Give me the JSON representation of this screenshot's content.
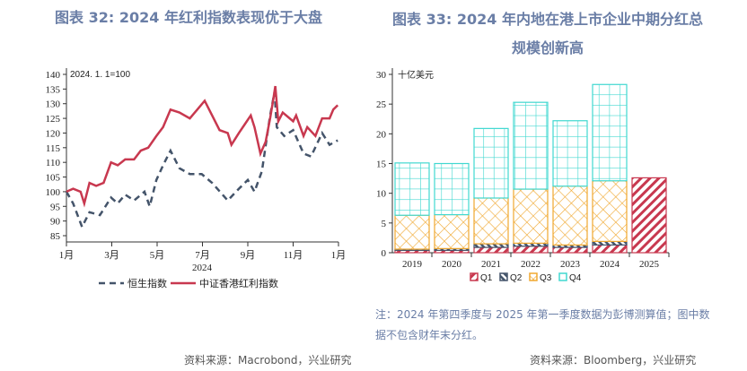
{
  "left": {
    "title": "图表 32: 2024 年红利指数表现优于大盘",
    "source": "资料来源：Macrobond，兴业研究"
  },
  "right": {
    "title_line1": "图表 33: 2024 年内地在港上市企业中期分红总",
    "title_line2": "规模创新高",
    "note": "注：2024 年第四季度与 2025 年第一季度数据为彭博测算值；图中数据不包含财年末分红。",
    "source": "资料来源：Bloomberg，兴业研究"
  },
  "chart_data": [
    {
      "type": "line",
      "annotation": "2024. 1. 1=100",
      "xlabel": "2024",
      "ylim": [
        85,
        140
      ],
      "yticks": [
        85,
        90,
        95,
        100,
        105,
        110,
        115,
        120,
        125,
        130,
        135,
        140
      ],
      "xticks": [
        "1月",
        "3月",
        "5月",
        "7月",
        "9月",
        "11月",
        "1月"
      ],
      "legend_position": "bottom",
      "series": [
        {
          "name": "恒生指数",
          "color": "#44546a",
          "style": "dashed",
          "points": [
            [
              "2024-01-01",
              100
            ],
            [
              "2024-01-10",
              96
            ],
            [
              "2024-01-22",
              88
            ],
            [
              "2024-02-01",
              93
            ],
            [
              "2024-02-15",
              92
            ],
            [
              "2024-03-01",
              98
            ],
            [
              "2024-03-10",
              96
            ],
            [
              "2024-03-20",
              99
            ],
            [
              "2024-04-01",
              97
            ],
            [
              "2024-04-15",
              100
            ],
            [
              "2024-04-22",
              95
            ],
            [
              "2024-05-01",
              104
            ],
            [
              "2024-05-10",
              109
            ],
            [
              "2024-05-20",
              114
            ],
            [
              "2024-06-01",
              108
            ],
            [
              "2024-06-15",
              106
            ],
            [
              "2024-07-01",
              106
            ],
            [
              "2024-07-15",
              103
            ],
            [
              "2024-08-05",
              97
            ],
            [
              "2024-08-20",
              101
            ],
            [
              "2024-09-01",
              104
            ],
            [
              "2024-09-10",
              100
            ],
            [
              "2024-09-20",
              107
            ],
            [
              "2024-10-01",
              126
            ],
            [
              "2024-10-07",
              134
            ],
            [
              "2024-10-10",
              122
            ],
            [
              "2024-10-20",
              119
            ],
            [
              "2024-11-01",
              121
            ],
            [
              "2024-11-15",
              113
            ],
            [
              "2024-11-25",
              112
            ],
            [
              "2024-12-10",
              120
            ],
            [
              "2024-12-20",
              116
            ],
            [
              "2024-12-31",
              117.5
            ]
          ]
        },
        {
          "name": "中证香港红利指数",
          "color": "#c8384f",
          "style": "solid",
          "points": [
            [
              "2024-01-01",
              100
            ],
            [
              "2024-01-10",
              101
            ],
            [
              "2024-01-20",
              100
            ],
            [
              "2024-01-25",
              96
            ],
            [
              "2024-02-01",
              103
            ],
            [
              "2024-02-10",
              102
            ],
            [
              "2024-02-20",
              103
            ],
            [
              "2024-03-01",
              110
            ],
            [
              "2024-03-10",
              109
            ],
            [
              "2024-03-20",
              111
            ],
            [
              "2024-04-01",
              111
            ],
            [
              "2024-04-10",
              114
            ],
            [
              "2024-04-20",
              115
            ],
            [
              "2024-05-01",
              119
            ],
            [
              "2024-05-10",
              122
            ],
            [
              "2024-05-20",
              128
            ],
            [
              "2024-06-01",
              127
            ],
            [
              "2024-06-15",
              125
            ],
            [
              "2024-06-25",
              128
            ],
            [
              "2024-07-05",
              131
            ],
            [
              "2024-07-15",
              126
            ],
            [
              "2024-07-25",
              121
            ],
            [
              "2024-08-05",
              120
            ],
            [
              "2024-08-10",
              116
            ],
            [
              "2024-08-20",
              120
            ],
            [
              "2024-08-28",
              123
            ],
            [
              "2024-09-05",
              126
            ],
            [
              "2024-09-10",
              122
            ],
            [
              "2024-09-18",
              113
            ],
            [
              "2024-09-25",
              117
            ],
            [
              "2024-10-01",
              125
            ],
            [
              "2024-10-05",
              131
            ],
            [
              "2024-10-08",
              136
            ],
            [
              "2024-10-12",
              124
            ],
            [
              "2024-10-18",
              127
            ],
            [
              "2024-11-01",
              124
            ],
            [
              "2024-11-05",
              126
            ],
            [
              "2024-11-15",
              119
            ],
            [
              "2024-11-20",
              122
            ],
            [
              "2024-12-01",
              119
            ],
            [
              "2024-12-10",
              125
            ],
            [
              "2024-12-20",
              125
            ],
            [
              "2024-12-25",
              128
            ],
            [
              "2024-12-31",
              129.5
            ]
          ]
        }
      ]
    },
    {
      "type": "bar",
      "stacked": true,
      "unit_label": "十亿美元",
      "ylim": [
        0,
        30
      ],
      "yticks": [
        0,
        5,
        10,
        15,
        20,
        25,
        30
      ],
      "categories": [
        "2019",
        "2020",
        "2021",
        "2022",
        "2023",
        "2024",
        "2025"
      ],
      "legend_position": "bottom",
      "series": [
        {
          "name": "Q1",
          "color": "#c8384f",
          "values": [
            0.4,
            0.4,
            0.9,
            1.1,
            0.9,
            1.3,
            12.6
          ]
        },
        {
          "name": "Q2",
          "color": "#44546a",
          "values": [
            0.2,
            0.3,
            0.6,
            0.5,
            0.4,
            0.6,
            0
          ]
        },
        {
          "name": "Q3",
          "color": "#f0a830",
          "values": [
            5.7,
            5.7,
            7.7,
            9.1,
            9.9,
            10.2,
            0
          ]
        },
        {
          "name": "Q4",
          "color": "#40d8d0",
          "values": [
            8.8,
            8.6,
            11.7,
            14.6,
            11.0,
            16.2,
            0
          ]
        }
      ]
    }
  ]
}
